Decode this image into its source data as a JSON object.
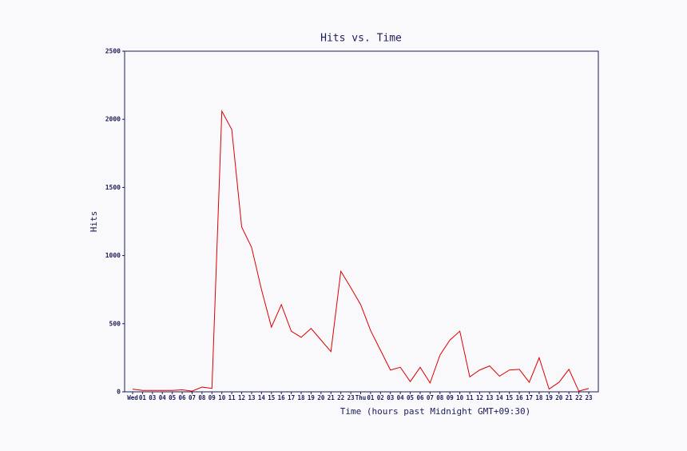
{
  "chart_data": {
    "type": "line",
    "title": "Hits vs. Time",
    "x_label": "Time (hours past Midnight GMT+09:30)",
    "y_label": "Hits",
    "categories": [
      "Wed",
      "01",
      "03",
      "04",
      "05",
      "06",
      "07",
      "08",
      "09",
      "10",
      "11",
      "12",
      "13",
      "14",
      "15",
      "16",
      "17",
      "18",
      "19",
      "20",
      "21",
      "22",
      "23",
      "Thu",
      "01",
      "02",
      "03",
      "04",
      "05",
      "06",
      "07",
      "08",
      "09",
      "10",
      "11",
      "12",
      "13",
      "14",
      "15",
      "16",
      "17",
      "18",
      "19",
      "20",
      "21",
      "22",
      "23"
    ],
    "series": [
      {
        "name": "Hits",
        "color": "#dd0000",
        "values": [
          20,
          10,
          10,
          10,
          10,
          15,
          5,
          35,
          25,
          2060,
          1925,
          1210,
          1060,
          750,
          475,
          640,
          445,
          400,
          465,
          380,
          295,
          885,
          765,
          640,
          450,
          305,
          160,
          180,
          75,
          180,
          65,
          270,
          380,
          445,
          110,
          160,
          190,
          115,
          160,
          165,
          70,
          250,
          20,
          70,
          165,
          5,
          25
        ]
      }
    ],
    "ylim": [
      0,
      2500
    ],
    "yticks": [
      0,
      500,
      1000,
      1500,
      2000,
      2500
    ],
    "grid": false,
    "frame_color": "#1c1c5a"
  }
}
